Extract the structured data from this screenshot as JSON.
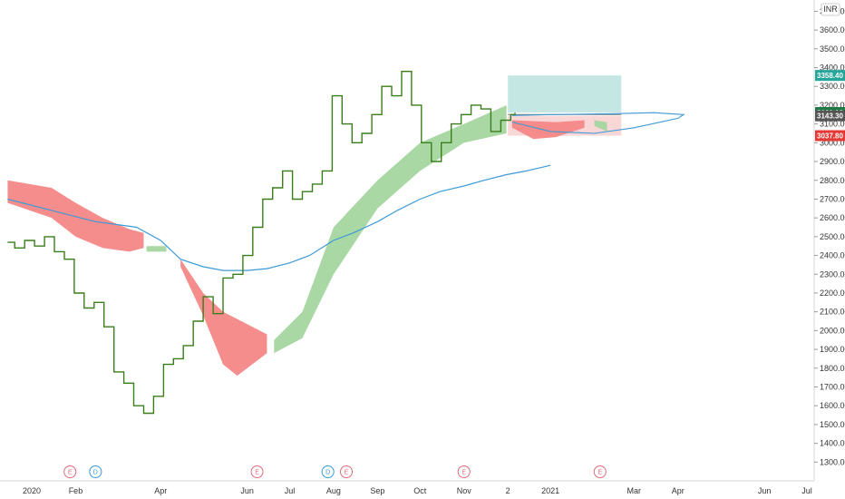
{
  "currency": "INR",
  "colors": {
    "price_line": "#3a7d1b",
    "ma_line": "#3c9ad6",
    "cloud_bull": "#a5d6a0",
    "cloud_bear": "#f58787",
    "target_zone": "#b2dfdb",
    "stop_zone": "#f8c9c9",
    "badge_teal": "#26a69a",
    "badge_green": "#1f7a45",
    "badge_gray": "#555555",
    "badge_red": "#e53935",
    "earnings": "#e06c7a",
    "dividend": "#3c9ad6"
  },
  "price_badges": [
    {
      "label": "3358.40",
      "value": 3358.4,
      "color_key": "badge_teal"
    },
    {
      "label": "3161.10",
      "value": 3161.1,
      "color_key": "badge_green"
    },
    {
      "label": "3143.30",
      "value": 3143.3,
      "color_key": "badge_gray"
    },
    {
      "label": "3037.80",
      "value": 3037.8,
      "color_key": "badge_red"
    }
  ],
  "chart_data": {
    "type": "line",
    "title": "",
    "xlabel": "",
    "ylabel": "",
    "ylim": [
      1200,
      3760
    ],
    "grid": false,
    "y_ticks": [
      "1300.00",
      "1400.00",
      "1500.00",
      "1600.00",
      "1700.00",
      "1800.00",
      "1900.00",
      "2000.00",
      "2100.00",
      "2200.00",
      "2300.00",
      "2400.00",
      "2500.00",
      "2600.00",
      "2700.00",
      "2800.00",
      "2900.00",
      "3000.00",
      "3100.00",
      "3200.00",
      "3300.00",
      "3400.00",
      "3500.00",
      "3600.00",
      "3700.00"
    ],
    "x_ticks": [
      {
        "label": "2020",
        "date": "2020-01-01"
      },
      {
        "label": "Feb",
        "date": "2020-02-01"
      },
      {
        "label": "Apr",
        "date": "2020-04-01"
      },
      {
        "label": "Jun",
        "date": "2020-06-01"
      },
      {
        "label": "Jul",
        "date": "2020-07-01"
      },
      {
        "label": "Aug",
        "date": "2020-08-01"
      },
      {
        "label": "Sep",
        "date": "2020-09-01"
      },
      {
        "label": "Oct",
        "date": "2020-10-01"
      },
      {
        "label": "Nov",
        "date": "2020-11-01"
      },
      {
        "label": "2",
        "date": "2020-12-02"
      },
      {
        "label": "2021",
        "date": "2021-01-01"
      },
      {
        "label": "Mar",
        "date": "2021-03-01"
      },
      {
        "label": "Apr",
        "date": "2021-04-01"
      },
      {
        "label": "Jun",
        "date": "2021-06-01"
      },
      {
        "label": "Jul",
        "date": "2021-07-01"
      }
    ],
    "series": [
      {
        "kind": "price",
        "points": [
          [
            "2019-12-15",
            2470
          ],
          [
            "2019-12-20",
            2440
          ],
          [
            "2019-12-27",
            2480
          ],
          [
            "2020-01-03",
            2450
          ],
          [
            "2020-01-10",
            2500
          ],
          [
            "2020-01-17",
            2420
          ],
          [
            "2020-01-24",
            2380
          ],
          [
            "2020-01-31",
            2200
          ],
          [
            "2020-02-07",
            2120
          ],
          [
            "2020-02-14",
            2150
          ],
          [
            "2020-02-21",
            2020
          ],
          [
            "2020-02-28",
            1780
          ],
          [
            "2020-03-06",
            1720
          ],
          [
            "2020-03-13",
            1600
          ],
          [
            "2020-03-20",
            1560
          ],
          [
            "2020-03-27",
            1650
          ],
          [
            "2020-04-03",
            1820
          ],
          [
            "2020-04-10",
            1850
          ],
          [
            "2020-04-17",
            1920
          ],
          [
            "2020-04-24",
            2050
          ],
          [
            "2020-05-01",
            2180
          ],
          [
            "2020-05-08",
            2090
          ],
          [
            "2020-05-15",
            2280
          ],
          [
            "2020-05-22",
            2300
          ],
          [
            "2020-05-29",
            2400
          ],
          [
            "2020-06-05",
            2550
          ],
          [
            "2020-06-12",
            2700
          ],
          [
            "2020-06-19",
            2760
          ],
          [
            "2020-06-26",
            2850
          ],
          [
            "2020-07-03",
            2700
          ],
          [
            "2020-07-10",
            2740
          ],
          [
            "2020-07-17",
            2780
          ],
          [
            "2020-07-24",
            2850
          ],
          [
            "2020-07-31",
            3250
          ],
          [
            "2020-08-07",
            3100
          ],
          [
            "2020-08-14",
            3000
          ],
          [
            "2020-08-21",
            3050
          ],
          [
            "2020-08-28",
            3150
          ],
          [
            "2020-09-04",
            3300
          ],
          [
            "2020-09-11",
            3250
          ],
          [
            "2020-09-18",
            3380
          ],
          [
            "2020-09-25",
            3200
          ],
          [
            "2020-10-02",
            3000
          ],
          [
            "2020-10-09",
            2900
          ],
          [
            "2020-10-16",
            3000
          ],
          [
            "2020-10-23",
            3100
          ],
          [
            "2020-10-30",
            3150
          ],
          [
            "2020-11-06",
            3200
          ],
          [
            "2020-11-13",
            3180
          ],
          [
            "2020-11-20",
            3060
          ],
          [
            "2020-11-27",
            3120
          ],
          [
            "2020-12-04",
            3150
          ],
          [
            "2020-12-07",
            3160
          ]
        ]
      },
      {
        "kind": "moving_average",
        "points": [
          [
            "2019-12-15",
            2700
          ],
          [
            "2020-01-15",
            2640
          ],
          [
            "2020-02-15",
            2580
          ],
          [
            "2020-03-15",
            2550
          ],
          [
            "2020-04-01",
            2480
          ],
          [
            "2020-04-15",
            2380
          ],
          [
            "2020-05-01",
            2340
          ],
          [
            "2020-05-15",
            2320
          ],
          [
            "2020-06-01",
            2320
          ],
          [
            "2020-06-15",
            2330
          ],
          [
            "2020-07-01",
            2360
          ],
          [
            "2020-07-15",
            2400
          ],
          [
            "2020-08-01",
            2480
          ],
          [
            "2020-08-15",
            2520
          ],
          [
            "2020-09-01",
            2580
          ],
          [
            "2020-09-15",
            2640
          ],
          [
            "2020-10-01",
            2700
          ],
          [
            "2020-10-15",
            2740
          ],
          [
            "2020-11-01",
            2770
          ],
          [
            "2020-11-15",
            2800
          ],
          [
            "2020-12-01",
            2830
          ],
          [
            "2020-12-15",
            2850
          ],
          [
            "2021-01-01",
            2880
          ]
        ]
      }
    ],
    "cloud_segments": [
      {
        "trend": "bearish",
        "upper": [
          [
            "2019-12-15",
            2800
          ],
          [
            "2020-01-15",
            2760
          ],
          [
            "2020-02-01",
            2680
          ],
          [
            "2020-02-20",
            2600
          ],
          [
            "2020-03-10",
            2540
          ],
          [
            "2020-03-20",
            2520
          ]
        ],
        "lower": [
          [
            "2019-12-15",
            2680
          ],
          [
            "2020-01-15",
            2600
          ],
          [
            "2020-02-01",
            2500
          ],
          [
            "2020-02-20",
            2440
          ],
          [
            "2020-03-10",
            2420
          ],
          [
            "2020-03-20",
            2440
          ]
        ]
      },
      {
        "trend": "bullish",
        "upper": [
          [
            "2020-03-22",
            2450
          ],
          [
            "2020-04-05",
            2450
          ]
        ],
        "lower": [
          [
            "2020-03-22",
            2420
          ],
          [
            "2020-04-05",
            2420
          ]
        ]
      },
      {
        "trend": "bearish",
        "upper": [
          [
            "2020-04-15",
            2380
          ],
          [
            "2020-05-01",
            2200
          ],
          [
            "2020-05-15",
            2100
          ],
          [
            "2020-06-15",
            1980
          ]
        ],
        "lower": [
          [
            "2020-04-15",
            2340
          ],
          [
            "2020-05-01",
            2080
          ],
          [
            "2020-05-15",
            1820
          ],
          [
            "2020-05-25",
            1760
          ],
          [
            "2020-06-15",
            1880
          ]
        ]
      },
      {
        "trend": "bullish",
        "upper": [
          [
            "2020-06-20",
            1950
          ],
          [
            "2020-07-10",
            2100
          ],
          [
            "2020-08-01",
            2550
          ],
          [
            "2020-09-01",
            2800
          ],
          [
            "2020-10-01",
            3000
          ],
          [
            "2020-11-01",
            3100
          ],
          [
            "2020-12-01",
            3200
          ]
        ],
        "lower": [
          [
            "2020-06-20",
            1880
          ],
          [
            "2020-07-10",
            1960
          ],
          [
            "2020-08-01",
            2300
          ],
          [
            "2020-09-01",
            2650
          ],
          [
            "2020-10-01",
            2850
          ],
          [
            "2020-11-01",
            3000
          ],
          [
            "2020-12-01",
            3050
          ]
        ]
      },
      {
        "trend": "bearish",
        "upper": [
          [
            "2020-12-05",
            3120
          ],
          [
            "2021-01-05",
            3110
          ],
          [
            "2021-01-25",
            3120
          ]
        ],
        "lower": [
          [
            "2020-12-05",
            3080
          ],
          [
            "2020-12-20",
            3020
          ],
          [
            "2021-01-05",
            3030
          ],
          [
            "2021-01-25",
            3080
          ]
        ]
      },
      {
        "trend": "bullish",
        "upper": [
          [
            "2021-02-01",
            3120
          ],
          [
            "2021-02-10",
            3110
          ]
        ],
        "lower": [
          [
            "2021-02-01",
            3090
          ],
          [
            "2021-02-10",
            3060
          ]
        ]
      }
    ],
    "zones": [
      {
        "kind": "target",
        "x_start": "2020-12-02",
        "x_end": "2021-02-20",
        "y_low": 3161.1,
        "y_high": 3358.4
      },
      {
        "kind": "stop",
        "x_start": "2020-12-02",
        "x_end": "2021-02-20",
        "y_low": 3037.8,
        "y_high": 3143.3
      }
    ],
    "projection_curve": [
      [
        "2020-12-05",
        3110
      ],
      [
        "2021-01-01",
        3060
      ],
      [
        "2021-02-01",
        3050
      ],
      [
        "2021-03-01",
        3080
      ],
      [
        "2021-04-01",
        3130
      ],
      [
        "2021-04-05",
        3150
      ],
      [
        "2021-03-15",
        3160
      ],
      [
        "2021-02-15",
        3155
      ],
      [
        "2021-01-01",
        3150
      ],
      [
        "2020-12-05",
        3145
      ]
    ],
    "event_markers": [
      {
        "label": "E",
        "date": "2020-01-28",
        "type": "earnings"
      },
      {
        "label": "D",
        "date": "2020-02-15",
        "type": "dividend"
      },
      {
        "label": "E",
        "date": "2020-06-08",
        "type": "earnings"
      },
      {
        "label": "D",
        "date": "2020-07-28",
        "type": "dividend"
      },
      {
        "label": "E",
        "date": "2020-08-10",
        "type": "earnings"
      },
      {
        "label": "E",
        "date": "2020-11-01",
        "type": "earnings"
      },
      {
        "label": "E",
        "date": "2021-02-05",
        "type": "earnings"
      }
    ]
  }
}
